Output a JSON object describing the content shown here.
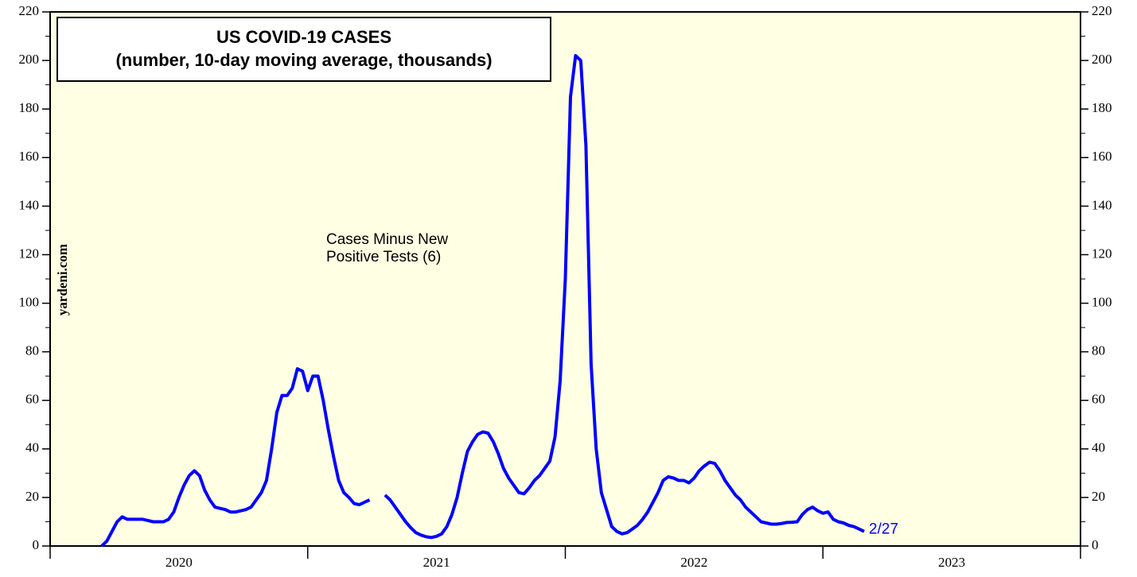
{
  "chart_data": {
    "type": "line",
    "title": "US COVID-19 CASES",
    "subtitle": "(number, 10-day moving average, thousands)",
    "watermark": "yardeni.com",
    "annotation": "Cases Minus New\nPositive Tests (6)",
    "end_label": "2/27",
    "xlim": [
      2020,
      2024
    ],
    "xticks": [
      {
        "value": 2020.5,
        "label": "2020"
      },
      {
        "value": 2021.5,
        "label": "2021"
      },
      {
        "value": 2022.5,
        "label": "2022"
      },
      {
        "value": 2023.5,
        "label": "2023"
      }
    ],
    "xminor_ticks": [
      2021,
      2022,
      2023
    ],
    "ylim": [
      0,
      220
    ],
    "yticks": [
      0,
      20,
      40,
      60,
      80,
      100,
      120,
      140,
      160,
      180,
      200,
      220
    ],
    "y2lim": [
      0,
      220
    ],
    "y2ticks": [
      0,
      20,
      40,
      60,
      80,
      100,
      120,
      140,
      160,
      180,
      200,
      220
    ],
    "yminor_ticks": [
      10,
      30,
      50,
      70,
      90,
      110,
      130,
      150,
      170,
      190,
      210
    ],
    "x": [
      2020.2,
      2020.22,
      2020.24,
      2020.26,
      2020.28,
      2020.3,
      2020.32,
      2020.34,
      2020.36,
      2020.38,
      2020.4,
      2020.42,
      2020.44,
      2020.46,
      2020.48,
      2020.5,
      2020.52,
      2020.54,
      2020.56,
      2020.58,
      2020.6,
      2020.62,
      2020.64,
      2020.66,
      2020.68,
      2020.7,
      2020.72,
      2020.74,
      2020.76,
      2020.78,
      2020.8,
      2020.82,
      2020.84,
      2020.86,
      2020.88,
      2020.9,
      2020.92,
      2020.94,
      2020.96,
      2020.98,
      2021.0,
      2021.02,
      2021.04,
      2021.06,
      2021.08,
      2021.1,
      2021.12,
      2021.14,
      2021.16,
      2021.18,
      2021.2,
      2021.22,
      2021.24,
      2021.26,
      2021.28,
      2021.3,
      2021.32,
      2021.34,
      2021.36,
      2021.38,
      2021.4,
      2021.42,
      2021.44,
      2021.46,
      2021.48,
      2021.5,
      2021.52,
      2021.54,
      2021.56,
      2021.58,
      2021.6,
      2021.62,
      2021.64,
      2021.66,
      2021.68,
      2021.7,
      2021.72,
      2021.74,
      2021.76,
      2021.78,
      2021.8,
      2021.82,
      2021.84,
      2021.86,
      2021.88,
      2021.9,
      2021.92,
      2021.94,
      2021.96,
      2021.98,
      2022.0,
      2022.02,
      2022.04,
      2022.06,
      2022.08,
      2022.1,
      2022.12,
      2022.14,
      2022.16,
      2022.18,
      2022.2,
      2022.22,
      2022.24,
      2022.26,
      2022.28,
      2022.3,
      2022.32,
      2022.34,
      2022.36,
      2022.38,
      2022.4,
      2022.42,
      2022.44,
      2022.46,
      2022.48,
      2022.5,
      2022.52,
      2022.54,
      2022.56,
      2022.58,
      2022.6,
      2022.62,
      2022.64,
      2022.66,
      2022.68,
      2022.7,
      2022.72,
      2022.74,
      2022.76,
      2022.78,
      2022.8,
      2022.82,
      2022.84,
      2022.86,
      2022.88,
      2022.9,
      2022.92,
      2022.94,
      2022.96,
      2022.98,
      2023.0,
      2023.02,
      2023.04,
      2023.06,
      2023.08,
      2023.1,
      2023.12,
      2023.14,
      2023.16
    ],
    "series": [
      {
        "name": "Cases Minus New Positive Tests",
        "color": "#0000ff",
        "values": [
          0,
          2,
          6,
          10,
          12,
          11,
          11,
          11,
          11,
          10.5,
          10,
          10,
          10,
          11,
          14,
          20,
          25,
          29,
          31,
          29,
          23,
          19,
          16,
          15.5,
          15,
          14,
          14,
          14.5,
          15,
          16,
          19,
          22,
          27,
          40,
          55,
          62,
          62,
          65,
          73,
          72,
          64,
          70,
          70,
          60,
          48,
          37,
          27,
          22,
          20,
          17.5,
          17,
          18,
          19,
          null,
          null,
          21,
          19,
          16,
          13,
          10,
          7.5,
          5.5,
          4.5,
          3.8,
          3.5,
          4,
          5,
          8,
          13,
          20,
          30,
          39,
          43,
          46,
          47,
          46.5,
          43,
          38,
          32,
          28,
          25,
          22,
          21.5,
          24,
          27,
          29,
          32,
          35,
          45,
          68,
          110,
          185,
          202,
          200,
          165,
          75,
          40,
          22,
          15,
          8,
          6,
          5,
          5.5,
          7,
          8.5,
          11,
          14,
          18,
          22,
          27,
          28.5,
          28,
          27,
          27,
          26,
          28,
          31,
          33,
          34.5,
          34,
          31,
          27,
          24,
          21,
          19,
          16,
          14,
          12,
          10,
          9.5,
          9,
          9,
          9.3,
          9.7,
          9.8,
          10,
          13,
          15,
          16,
          14.5,
          13.5,
          14,
          11,
          10,
          9.5,
          8.5,
          8,
          7,
          6
        ]
      }
    ]
  }
}
